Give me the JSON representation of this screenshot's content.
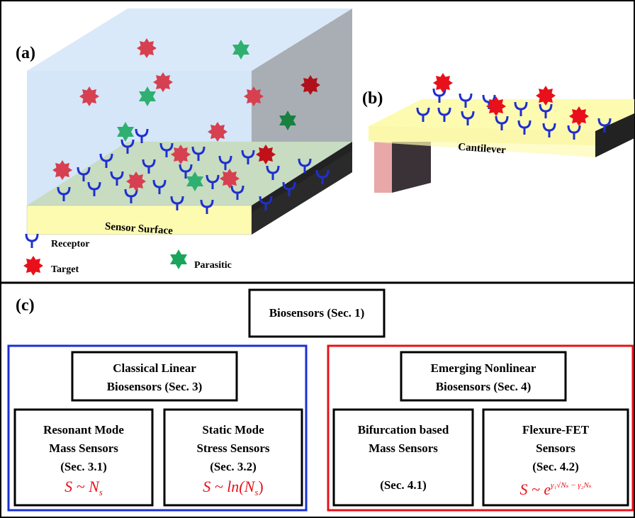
{
  "panels": {
    "a": "(a)",
    "b": "(b)",
    "c": "(c)"
  },
  "panel_a": {
    "surface_label": "Sensor Surface",
    "legend": {
      "receptor": "Receptor",
      "target": "Target",
      "parasitic": "Parasitic"
    }
  },
  "panel_b": {
    "cantilever_label": "Cantilever"
  },
  "panel_c": {
    "root": "Biosensors (Sec. 1)",
    "classical": {
      "line1": "Classical Linear",
      "line2": "Biosensors (Sec. 3)"
    },
    "emerging": {
      "line1": "Emerging Nonlinear",
      "line2": "Biosensors (Sec. 4)"
    },
    "resonant": {
      "line1": "Resonant Mode",
      "line2": "Mass Sensors",
      "line3": "(Sec. 3.1)",
      "formula_lhs": "S ~ ",
      "formula_var": "N",
      "formula_sub": "s"
    },
    "static": {
      "line1": "Static Mode",
      "line2": "Stress Sensors",
      "line3": "(Sec. 3.2)",
      "formula_lhs": "S ~ ln(",
      "formula_var": "N",
      "formula_sub": "s",
      "formula_rhs": ")"
    },
    "bifurcation": {
      "line1": "Bifurcation based",
      "line2": "Mass Sensors",
      "line3": "(Sec. 4.1)"
    },
    "flexure": {
      "line1": "Flexure-FET",
      "line2": "Sensors",
      "line3": "(Sec. 4.2)",
      "formula_lhs": "S ~ e",
      "formula_exp": "γ₁√Nₛ − γ₂Nₛ"
    }
  },
  "colors": {
    "receptor": "#1f2fd0",
    "target": "#e8101a",
    "parasitic": "#1aa55a",
    "classical_group": "#1a2fd6",
    "emerging_group": "#e8101a",
    "surface": "#fdfbb0",
    "box_top": "#cfe3f7"
  }
}
